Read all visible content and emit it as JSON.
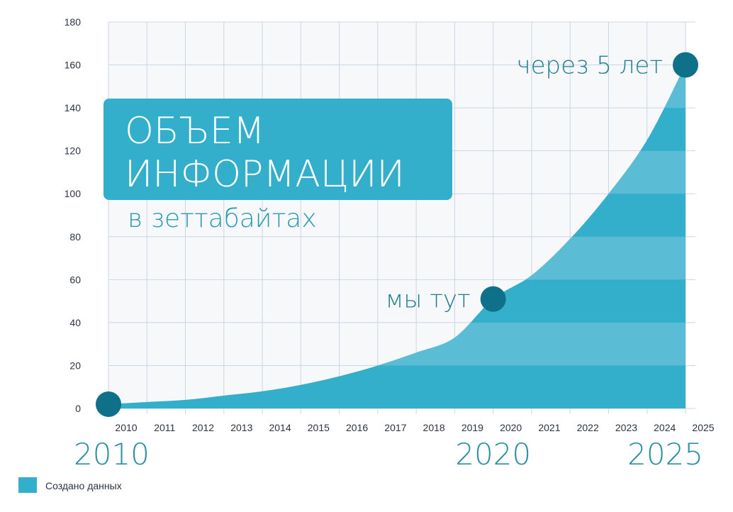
{
  "chart_data": {
    "type": "area",
    "title": "ОБЪЕМ ИНФОРМАЦИИ",
    "subtitle": "в зеттабайтах",
    "xlabel": "",
    "ylabel": "",
    "x": [
      2010,
      2011,
      2012,
      2013,
      2014,
      2015,
      2016,
      2017,
      2018,
      2019,
      2020,
      2021,
      2022,
      2023,
      2024,
      2025
    ],
    "x_tick_labels": [
      "2010",
      "2011",
      "2012",
      "2013",
      "2014",
      "2015",
      "2016",
      "2017",
      "2018",
      "2019",
      "2020",
      "2021",
      "2022",
      "2023",
      "2024",
      "2025"
    ],
    "series": [
      {
        "name": "Создано данных",
        "values": [
          2,
          3,
          4,
          6,
          8,
          11,
          15,
          20,
          26,
          33,
          51,
          62,
          79,
          100,
          125,
          160
        ]
      }
    ],
    "ylim": [
      0,
      180
    ],
    "y_ticks": [
      0,
      20,
      40,
      60,
      80,
      100,
      120,
      140,
      160,
      180
    ],
    "grid": true,
    "legend_position": "bottom-left",
    "big_years": [
      "2010",
      "2020",
      "2025"
    ],
    "annotations": [
      {
        "text": "мы тут",
        "x": 2020,
        "y": 51
      },
      {
        "text": "через 5 лет",
        "x": 2025,
        "y": 160
      }
    ],
    "markers": [
      {
        "x": 2010,
        "y": 2
      },
      {
        "x": 2020,
        "y": 51
      },
      {
        "x": 2025,
        "y": 160
      }
    ],
    "colors": {
      "area": "#33aecb",
      "area_band": "#5bbdd5",
      "marker": "#0e7089",
      "grid": "#c9d6e3",
      "title_box": "#33aecb"
    }
  }
}
